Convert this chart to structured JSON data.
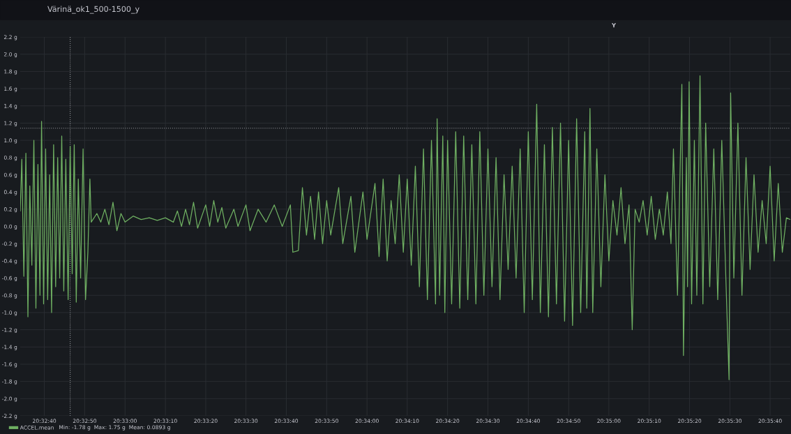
{
  "chart_data": {
    "type": "line",
    "title": "Värinä_ok1_500-1500_y",
    "x": [
      20.54278,
      20.54289,
      20.54303,
      20.54317,
      20.54331,
      20.54344,
      20.54358,
      20.54372,
      20.54386,
      20.544,
      20.54414,
      20.54425,
      20.54439,
      20.54453,
      20.54467,
      20.54481,
      20.54494,
      20.54508,
      20.54522,
      20.54536,
      20.5455,
      20.54564,
      20.54578,
      20.54592,
      20.54608,
      20.54622,
      20.54636,
      20.5465,
      20.54664,
      20.54678,
      20.54694,
      20.54711,
      20.54728,
      20.54744,
      20.54758,
      20.54767,
      20.54806,
      20.54833,
      20.54861,
      20.54889,
      20.54917,
      20.54944,
      20.54972,
      20.55,
      20.55056,
      20.55111,
      20.55167,
      20.55222,
      20.55278,
      20.55333,
      20.55361,
      20.55389,
      20.55417,
      20.55444,
      20.55472,
      20.555,
      20.55556,
      20.55583,
      20.55611,
      20.55639,
      20.55667,
      20.55694,
      20.5575,
      20.55778,
      20.55833,
      20.55861,
      20.55917,
      20.55972,
      20.56028,
      20.56083,
      20.56139,
      20.56156,
      20.56194,
      20.56222,
      20.5625,
      20.56278,
      20.56306,
      20.56333,
      20.56361,
      20.56389,
      20.56417,
      20.56472,
      20.565,
      20.56556,
      20.56583,
      20.56639,
      20.56667,
      20.56722,
      20.5675,
      20.56778,
      20.56806,
      20.56833,
      20.56861,
      20.56889,
      20.56917,
      20.56944,
      20.56972,
      20.57,
      20.57028,
      20.57056,
      20.57083,
      20.57111,
      20.57139,
      20.5715,
      20.57167,
      20.57189,
      20.57203,
      20.57222,
      20.5725,
      20.57278,
      20.57306,
      20.57333,
      20.57361,
      20.57389,
      20.57417,
      20.57444,
      20.57472,
      20.575,
      20.57528,
      20.57556,
      20.57583,
      20.57611,
      20.57639,
      20.57667,
      20.57694,
      20.57722,
      20.5775,
      20.57778,
      20.57806,
      20.57836,
      20.57861,
      20.57889,
      20.57917,
      20.57944,
      20.57972,
      20.58,
      20.58028,
      20.58056,
      20.58083,
      20.58111,
      20.58139,
      20.58167,
      20.58181,
      20.58203,
      20.58222,
      20.5825,
      20.58278,
      20.58306,
      20.58333,
      20.58361,
      20.58389,
      20.58417,
      20.58444,
      20.58472,
      20.58494,
      20.58514,
      20.58542,
      20.58569,
      20.58597,
      20.58625,
      20.58653,
      20.58681,
      20.58708,
      20.58736,
      20.58761,
      20.58778,
      20.58806,
      20.58836,
      20.58847,
      20.58867,
      20.58875,
      20.58886,
      20.58903,
      20.58922,
      20.58939,
      20.58961,
      20.58981,
      20.59,
      20.59028,
      20.59056,
      20.59083,
      20.59111,
      20.59139,
      20.59161,
      20.59172,
      20.59194,
      20.59222,
      20.5925,
      20.59278,
      20.59306,
      20.59333,
      20.59361,
      20.59389,
      20.59417,
      20.59444,
      20.59472,
      20.595,
      20.59528,
      20.59556,
      20.59583
    ],
    "series": [
      {
        "name": "ACCEL.mean",
        "color": "#6fb062",
        "values": [
          0.18,
          0.78,
          -0.58,
          0.85,
          -1.05,
          0.47,
          -0.45,
          1.0,
          -0.95,
          0.72,
          -0.8,
          1.22,
          -0.9,
          0.9,
          -0.85,
          0.6,
          -1.0,
          0.95,
          -0.7,
          0.8,
          -0.6,
          1.05,
          -0.75,
          0.78,
          -0.85,
          0.93,
          -0.55,
          0.95,
          -0.88,
          0.55,
          -0.6,
          0.9,
          -0.85,
          -0.3,
          0.55,
          0.05,
          0.15,
          0.05,
          0.2,
          0.02,
          0.28,
          -0.05,
          0.15,
          0.05,
          0.12,
          0.08,
          0.1,
          0.07,
          0.1,
          0.05,
          0.18,
          0.0,
          0.2,
          0.02,
          0.28,
          -0.02,
          0.25,
          0.0,
          0.3,
          0.05,
          0.22,
          -0.02,
          0.2,
          0.0,
          0.25,
          -0.05,
          0.2,
          0.05,
          0.25,
          0.0,
          0.25,
          -0.3,
          -0.28,
          0.45,
          -0.1,
          0.35,
          -0.15,
          0.4,
          -0.2,
          0.3,
          -0.1,
          0.45,
          -0.2,
          0.35,
          -0.3,
          0.4,
          -0.15,
          0.5,
          -0.35,
          0.55,
          -0.4,
          0.3,
          -0.2,
          0.6,
          -0.3,
          0.55,
          -0.45,
          0.7,
          -0.7,
          0.9,
          -0.85,
          1.0,
          -0.9,
          1.25,
          -0.8,
          1.05,
          -1.0,
          1.0,
          -0.9,
          1.1,
          -0.95,
          1.05,
          -0.85,
          0.95,
          -0.9,
          1.1,
          -0.8,
          0.9,
          -0.7,
          0.8,
          -0.85,
          0.6,
          -0.5,
          0.7,
          -0.6,
          0.9,
          -1.0,
          1.1,
          -0.85,
          1.42,
          -1.0,
          0.95,
          -1.05,
          1.15,
          -0.9,
          1.2,
          -1.1,
          1.0,
          -1.15,
          1.25,
          -1.0,
          1.1,
          -0.95,
          1.37,
          -1.0,
          0.9,
          -0.7,
          0.6,
          -0.4,
          0.3,
          -0.1,
          0.45,
          -0.2,
          0.25,
          -1.2,
          0.2,
          0.05,
          0.3,
          -0.1,
          0.35,
          -0.15,
          0.2,
          -0.1,
          0.4,
          -0.2,
          0.9,
          -0.8,
          1.65,
          -1.5,
          0.8,
          -0.7,
          1.68,
          -0.9,
          1.0,
          -0.8,
          1.75,
          -0.9,
          1.2,
          -0.7,
          0.9,
          -0.85,
          1.0,
          -0.6,
          -1.78,
          1.55,
          -0.6,
          1.2,
          -0.8,
          0.8,
          -0.5,
          0.6,
          -0.3,
          0.3,
          -0.2,
          0.7,
          -0.4,
          0.5,
          -0.3,
          0.1,
          0.08
        ]
      }
    ],
    "xlim": [
      20.54278,
      20.59583
    ],
    "xticks": [
      {
        "value": 20.54444,
        "label": "20:32:40"
      },
      {
        "value": 20.54722,
        "label": "20:32:50"
      },
      {
        "value": 20.55,
        "label": "20:33:00"
      },
      {
        "value": 20.55278,
        "label": "20:33:10"
      },
      {
        "value": 20.55556,
        "label": "20:33:20"
      },
      {
        "value": 20.55833,
        "label": "20:33:30"
      },
      {
        "value": 20.56111,
        "label": "20:33:40"
      },
      {
        "value": 20.56389,
        "label": "20:33:50"
      },
      {
        "value": 20.56667,
        "label": "20:34:00"
      },
      {
        "value": 20.56944,
        "label": "20:34:10"
      },
      {
        "value": 20.57222,
        "label": "20:34:20"
      },
      {
        "value": 20.575,
        "label": "20:34:30"
      },
      {
        "value": 20.57778,
        "label": "20:34:40"
      },
      {
        "value": 20.58056,
        "label": "20:34:50"
      },
      {
        "value": 20.58333,
        "label": "20:35:00"
      },
      {
        "value": 20.58611,
        "label": "20:35:10"
      },
      {
        "value": 20.58889,
        "label": "20:35:20"
      },
      {
        "value": 20.59167,
        "label": "20:35:30"
      },
      {
        "value": 20.59444,
        "label": "20:35:40"
      }
    ],
    "ylim": [
      -2.2,
      2.2
    ],
    "yticks": [
      {
        "value": -2.2,
        "label": "-2.2 g"
      },
      {
        "value": -2.0,
        "label": "-2.0 g"
      },
      {
        "value": -1.8,
        "label": "-1.8 g"
      },
      {
        "value": -1.6,
        "label": "-1.6 g"
      },
      {
        "value": -1.4,
        "label": "-1.4 g"
      },
      {
        "value": -1.2,
        "label": "-1.2 g"
      },
      {
        "value": -1.0,
        "label": "-1.0 g"
      },
      {
        "value": -0.8,
        "label": "-0.8 g"
      },
      {
        "value": -0.6,
        "label": "-0.6 g"
      },
      {
        "value": -0.4,
        "label": "-0.4 g"
      },
      {
        "value": -0.2,
        "label": "-0.2 g"
      },
      {
        "value": 0.0,
        "label": "0.0 g"
      },
      {
        "value": 0.2,
        "label": "0.2 g"
      },
      {
        "value": 0.4,
        "label": "0.4 g"
      },
      {
        "value": 0.6,
        "label": "0.6 g"
      },
      {
        "value": 0.8,
        "label": "0.8 g"
      },
      {
        "value": 1.0,
        "label": "1.0 g"
      },
      {
        "value": 1.2,
        "label": "1.2 g"
      },
      {
        "value": 1.4,
        "label": "1.4 g"
      },
      {
        "value": 1.6,
        "label": "1.6 g"
      },
      {
        "value": 1.8,
        "label": "1.8 g"
      },
      {
        "value": 2.0,
        "label": "2.0 g"
      },
      {
        "value": 2.2,
        "label": "2.2 g"
      }
    ],
    "ref_lines": [
      {
        "axis": "y",
        "value": 1.14,
        "color": "#8a8d93",
        "line_style": "dotted"
      },
      {
        "axis": "x",
        "value": 20.54622,
        "color": "#8a8d93",
        "line_style": "dotted"
      }
    ],
    "annotations": [
      "Y",
      "Min: -1.78 g  Max: 1.75 g  Mean: 0.0893 g"
    ],
    "grid": true,
    "legend": "bottom left",
    "marker": "none",
    "line_style": "solid"
  }
}
